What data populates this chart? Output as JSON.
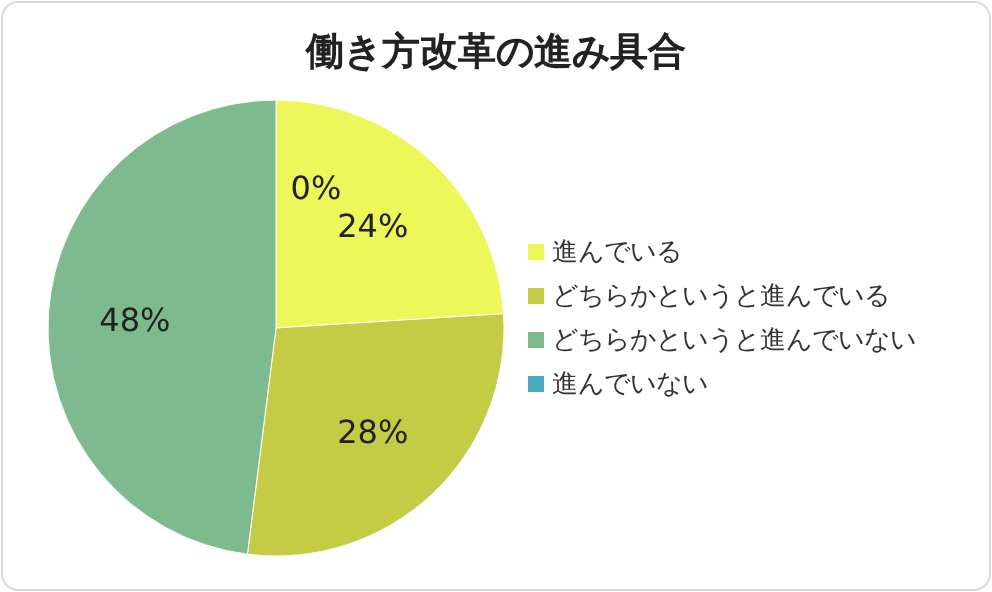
{
  "chart_data": {
    "type": "pie",
    "title": "働き方改革の進み具合",
    "categories": [
      "進んでいる",
      "どちらかというと進んでいる",
      "どちらかというと進んでいない",
      "進んでいない"
    ],
    "values": [
      24,
      28,
      48,
      0
    ],
    "colors": [
      "#eef75a",
      "#c3cc44",
      "#7dbb8e",
      "#4aa8c0"
    ],
    "value_labels": [
      "24%",
      "28%",
      "48%",
      "0%"
    ],
    "legend": "right"
  }
}
